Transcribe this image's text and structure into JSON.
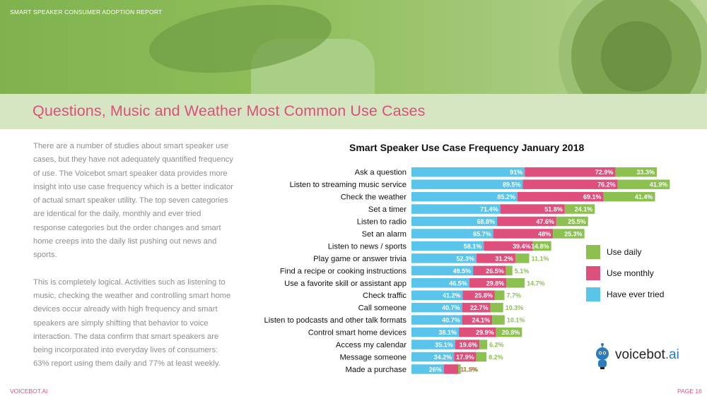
{
  "header": {
    "report_label": "SMART SPEAKER CONSUMER ADOPTION REPORT"
  },
  "title": "Questions, Music and Weather Most Common Use Cases",
  "body": {
    "paragraphs": [
      "There are a number of studies about smart speaker use cases, but they have not adequately quantified frequency of use. The Voicebot smart speaker data provides more insight into use case frequency which is a better indicator of actual smart speaker utility. The top seven categories are identical for the daily, monthly and ever tried response categories but the order changes and smart home creeps into the daily list pushing out news and sports.",
      "This is completely logical. Activities such as listening to music, checking the weather and controlling smart home devices occur already with high frequency and smart speakers are simply shifting that behavior to voice interaction. The data confirm that smart speakers are being incorporated into everyday lives of consumers: 63% report using them daily and 77% at least weekly."
    ]
  },
  "chart_data": {
    "type": "bar",
    "orientation": "horizontal",
    "stacked": true,
    "title": "Smart Speaker Use Case Frequency January 2018",
    "legend_position": "right",
    "categories": [
      "Ask a question",
      "Listen to streaming music service",
      "Check the weather",
      "Set a timer",
      "Listen to radio",
      "Set an alarm",
      "Listen to news / sports",
      "Play game or answer trivia",
      "Find a recipe or cooking instructions",
      "Use a favorite skill or assistant app",
      "Check traffic",
      "Call someone",
      "Listen to podcasts and other talk formats",
      "Control smart home devices",
      "Access my calendar",
      "Message someone",
      "Made a purchase"
    ],
    "series": [
      {
        "name": "Have ever tried",
        "color": "#5bc4ea",
        "values": [
          91,
          89.5,
          85.2,
          71.4,
          68.8,
          65.7,
          58.1,
          52.3,
          49.5,
          46.5,
          41.2,
          40.7,
          40.7,
          38.1,
          35.1,
          34.2,
          26
        ],
        "labels": [
          "91%",
          "89.5%",
          "85.2%",
          "71.4%",
          "68.8%",
          "65.7%",
          "58.1%",
          "52.3%",
          "49.5%",
          "46.5%",
          "41.2%",
          "40.7%",
          "40.7%",
          "38.1%",
          "35.1%",
          "34.2%",
          "26%"
        ]
      },
      {
        "name": "Use monthly",
        "color": "#de4f7c",
        "values": [
          72.9,
          76.2,
          69.1,
          51.8,
          47.6,
          48,
          39.4,
          31.2,
          26.5,
          29.8,
          25.8,
          22.7,
          24.1,
          29.9,
          19.6,
          17.9,
          11.5
        ],
        "labels": [
          "72.9%",
          "76.2%",
          "69.1%",
          "51.8%",
          "47.6%",
          "48%",
          "39.4%",
          "31.2%",
          "26.5%",
          "29.8%",
          "25.8%",
          "22.7%",
          "24.1%",
          "29.9%",
          "19.6%",
          "17.9%",
          "11.5%"
        ]
      },
      {
        "name": "Use daily",
        "color": "#8cc152",
        "values": [
          33.3,
          41.9,
          41.4,
          24.1,
          25.5,
          25.3,
          14.8,
          11.1,
          5.1,
          14.7,
          7.7,
          10.3,
          10.1,
          20.8,
          6.2,
          8.2,
          2.1
        ],
        "labels": [
          "33.3%",
          "41.9%",
          "41.4%",
          "24.1%",
          "25.5%",
          "25.3%",
          "14.8%",
          "11.1%",
          "5.1%",
          "14.7%",
          "7.7%",
          "10.3%",
          "10.1%",
          "20.8%",
          "6.2%",
          "8.2%",
          "2.1%"
        ]
      }
    ]
  },
  "legend": {
    "items": [
      {
        "label": "Use daily",
        "color": "#8cc152"
      },
      {
        "label": "Use monthly",
        "color": "#de4f7c"
      },
      {
        "label": "Have ever tried",
        "color": "#5bc4ea"
      }
    ]
  },
  "brand": {
    "name_main": "voicebot",
    "name_suffix": ".ai",
    "logo_icon": "robot-mascot-icon"
  },
  "footer": {
    "left": "VOICEBOT.AI",
    "right": "PAGE 16"
  },
  "colors": {
    "accent_pink": "#de4f7c",
    "accent_green": "#8cc152",
    "accent_blue": "#5bc4ea",
    "band": "#d6e6c2"
  }
}
